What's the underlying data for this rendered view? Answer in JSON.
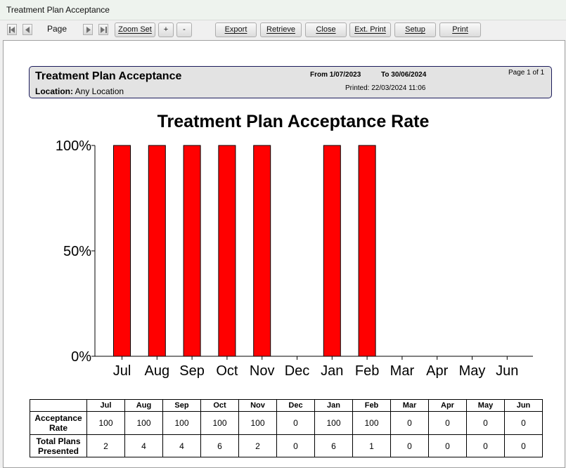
{
  "window": {
    "title": "Treatment Plan Acceptance"
  },
  "toolbar": {
    "page_label": "Page",
    "zoom_set": "Zoom Set",
    "zoom_in": "+",
    "zoom_out": "-",
    "export": "Export",
    "retrieve": "Retrieve",
    "close": "Close",
    "ext_print": "Ext. Print",
    "setup": "Setup",
    "print": "Print"
  },
  "report": {
    "title": "Treatment Plan Acceptance",
    "location_label": "Location:",
    "location_value": "Any Location",
    "from": "From 1/07/2023",
    "to": "To 30/06/2024",
    "printed": "Printed: 22/03/2024 11:06",
    "page": "Page 1 of 1"
  },
  "chart_data": {
    "type": "bar",
    "title": "Treatment Plan Acceptance Rate",
    "categories": [
      "Jul",
      "Aug",
      "Sep",
      "Oct",
      "Nov",
      "Dec",
      "Jan",
      "Feb",
      "Mar",
      "Apr",
      "May",
      "Jun"
    ],
    "values": [
      100,
      100,
      100,
      100,
      100,
      0,
      100,
      100,
      0,
      0,
      0,
      0
    ],
    "y_ticks": [
      "100%",
      "50%",
      "0%"
    ],
    "ylim": [
      0,
      100
    ],
    "bar_color": "#ff0000",
    "grid": false
  },
  "table": {
    "months": [
      "Jul",
      "Aug",
      "Sep",
      "Oct",
      "Nov",
      "Dec",
      "Jan",
      "Feb",
      "Mar",
      "Apr",
      "May",
      "Jun"
    ],
    "rows": [
      {
        "label_line1": "Acceptance",
        "label_line2": "Rate",
        "values": [
          "100",
          "100",
          "100",
          "100",
          "100",
          "0",
          "100",
          "100",
          "0",
          "0",
          "0",
          "0"
        ]
      },
      {
        "label_line1": "Total Plans",
        "label_line2": "Presented",
        "values": [
          "2",
          "4",
          "4",
          "6",
          "2",
          "0",
          "6",
          "1",
          "0",
          "0",
          "0",
          "0"
        ]
      }
    ]
  }
}
